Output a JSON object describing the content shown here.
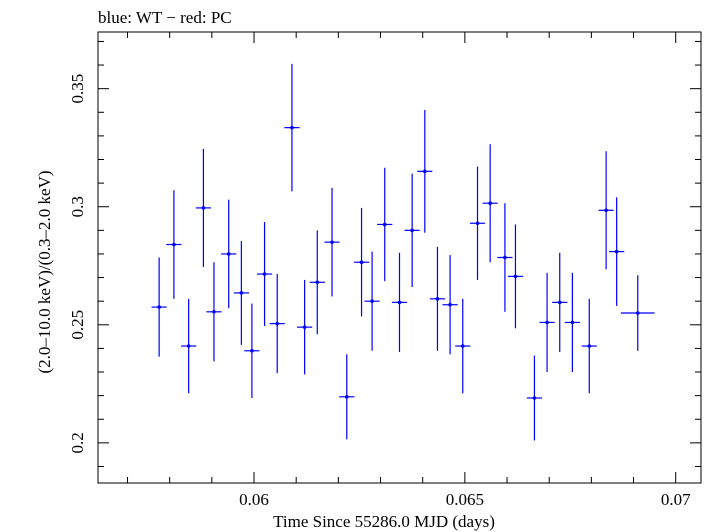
{
  "chart_data": {
    "type": "scatter",
    "title": "blue: WT − red: PC",
    "xlabel": "Time Since 55286.0 MJD (days)",
    "ylabel": "(2.0–10.0 keV)/(0.3–2.0 keV)",
    "xlim": [
      0.0563,
      0.0706
    ],
    "ylim": [
      0.183,
      0.374
    ],
    "xticks": [
      0.06,
      0.065,
      0.07
    ],
    "xtick_labels": [
      "0.06",
      "0.065",
      "0.07"
    ],
    "yticks": [
      0.2,
      0.25,
      0.3,
      0.35
    ],
    "ytick_labels": [
      "0.2",
      "0.25",
      "0.3",
      "0.35"
    ],
    "grid": false,
    "legend": "none",
    "series": [
      {
        "color": "#0000ff",
        "points": [
          {
            "x": 0.05775,
            "y": 0.2575,
            "xerr": 0.00018,
            "yerr": 0.021
          },
          {
            "x": 0.0581,
            "y": 0.284,
            "xerr": 0.00018,
            "yerr": 0.023
          },
          {
            "x": 0.05845,
            "y": 0.241,
            "xerr": 0.00018,
            "yerr": 0.02
          },
          {
            "x": 0.0588,
            "y": 0.2995,
            "xerr": 0.00018,
            "yerr": 0.025
          },
          {
            "x": 0.05905,
            "y": 0.2555,
            "xerr": 0.00018,
            "yerr": 0.021
          },
          {
            "x": 0.0594,
            "y": 0.28,
            "xerr": 0.00018,
            "yerr": 0.023
          },
          {
            "x": 0.0597,
            "y": 0.2635,
            "xerr": 0.00018,
            "yerr": 0.022
          },
          {
            "x": 0.05995,
            "y": 0.239,
            "xerr": 0.00018,
            "yerr": 0.02
          },
          {
            "x": 0.06025,
            "y": 0.2715,
            "xerr": 0.00018,
            "yerr": 0.022
          },
          {
            "x": 0.06055,
            "y": 0.2505,
            "xerr": 0.00018,
            "yerr": 0.021
          },
          {
            "x": 0.0609,
            "y": 0.3335,
            "xerr": 0.00018,
            "yerr": 0.027
          },
          {
            "x": 0.0612,
            "y": 0.249,
            "xerr": 0.00018,
            "yerr": 0.02
          },
          {
            "x": 0.0615,
            "y": 0.268,
            "xerr": 0.00018,
            "yerr": 0.022
          },
          {
            "x": 0.06185,
            "y": 0.285,
            "xerr": 0.00018,
            "yerr": 0.023
          },
          {
            "x": 0.0622,
            "y": 0.2195,
            "xerr": 0.00018,
            "yerr": 0.018
          },
          {
            "x": 0.06255,
            "y": 0.2765,
            "xerr": 0.00018,
            "yerr": 0.023
          },
          {
            "x": 0.0628,
            "y": 0.26,
            "xerr": 0.00018,
            "yerr": 0.021
          },
          {
            "x": 0.0631,
            "y": 0.2925,
            "xerr": 0.00018,
            "yerr": 0.024
          },
          {
            "x": 0.06345,
            "y": 0.2595,
            "xerr": 0.00018,
            "yerr": 0.021
          },
          {
            "x": 0.06375,
            "y": 0.29,
            "xerr": 0.00018,
            "yerr": 0.024
          },
          {
            "x": 0.06405,
            "y": 0.315,
            "xerr": 0.00018,
            "yerr": 0.026
          },
          {
            "x": 0.06435,
            "y": 0.261,
            "xerr": 0.00018,
            "yerr": 0.022
          },
          {
            "x": 0.06465,
            "y": 0.2585,
            "xerr": 0.00018,
            "yerr": 0.021
          },
          {
            "x": 0.06495,
            "y": 0.241,
            "xerr": 0.00018,
            "yerr": 0.02
          },
          {
            "x": 0.0653,
            "y": 0.293,
            "xerr": 0.00018,
            "yerr": 0.024
          },
          {
            "x": 0.0656,
            "y": 0.3015,
            "xerr": 0.00018,
            "yerr": 0.025
          },
          {
            "x": 0.06595,
            "y": 0.2785,
            "xerr": 0.00018,
            "yerr": 0.023
          },
          {
            "x": 0.0662,
            "y": 0.2705,
            "xerr": 0.00018,
            "yerr": 0.022
          },
          {
            "x": 0.06665,
            "y": 0.219,
            "xerr": 0.00018,
            "yerr": 0.018
          },
          {
            "x": 0.06695,
            "y": 0.251,
            "xerr": 0.00018,
            "yerr": 0.021
          },
          {
            "x": 0.06725,
            "y": 0.2595,
            "xerr": 0.00018,
            "yerr": 0.021
          },
          {
            "x": 0.06755,
            "y": 0.251,
            "xerr": 0.00018,
            "yerr": 0.021
          },
          {
            "x": 0.06795,
            "y": 0.241,
            "xerr": 0.00018,
            "yerr": 0.02
          },
          {
            "x": 0.06835,
            "y": 0.2985,
            "xerr": 0.00018,
            "yerr": 0.025
          },
          {
            "x": 0.0686,
            "y": 0.281,
            "xerr": 0.00018,
            "yerr": 0.023
          },
          {
            "x": 0.0691,
            "y": 0.255,
            "xerr": 0.0004,
            "yerr": 0.016
          }
        ]
      }
    ]
  }
}
